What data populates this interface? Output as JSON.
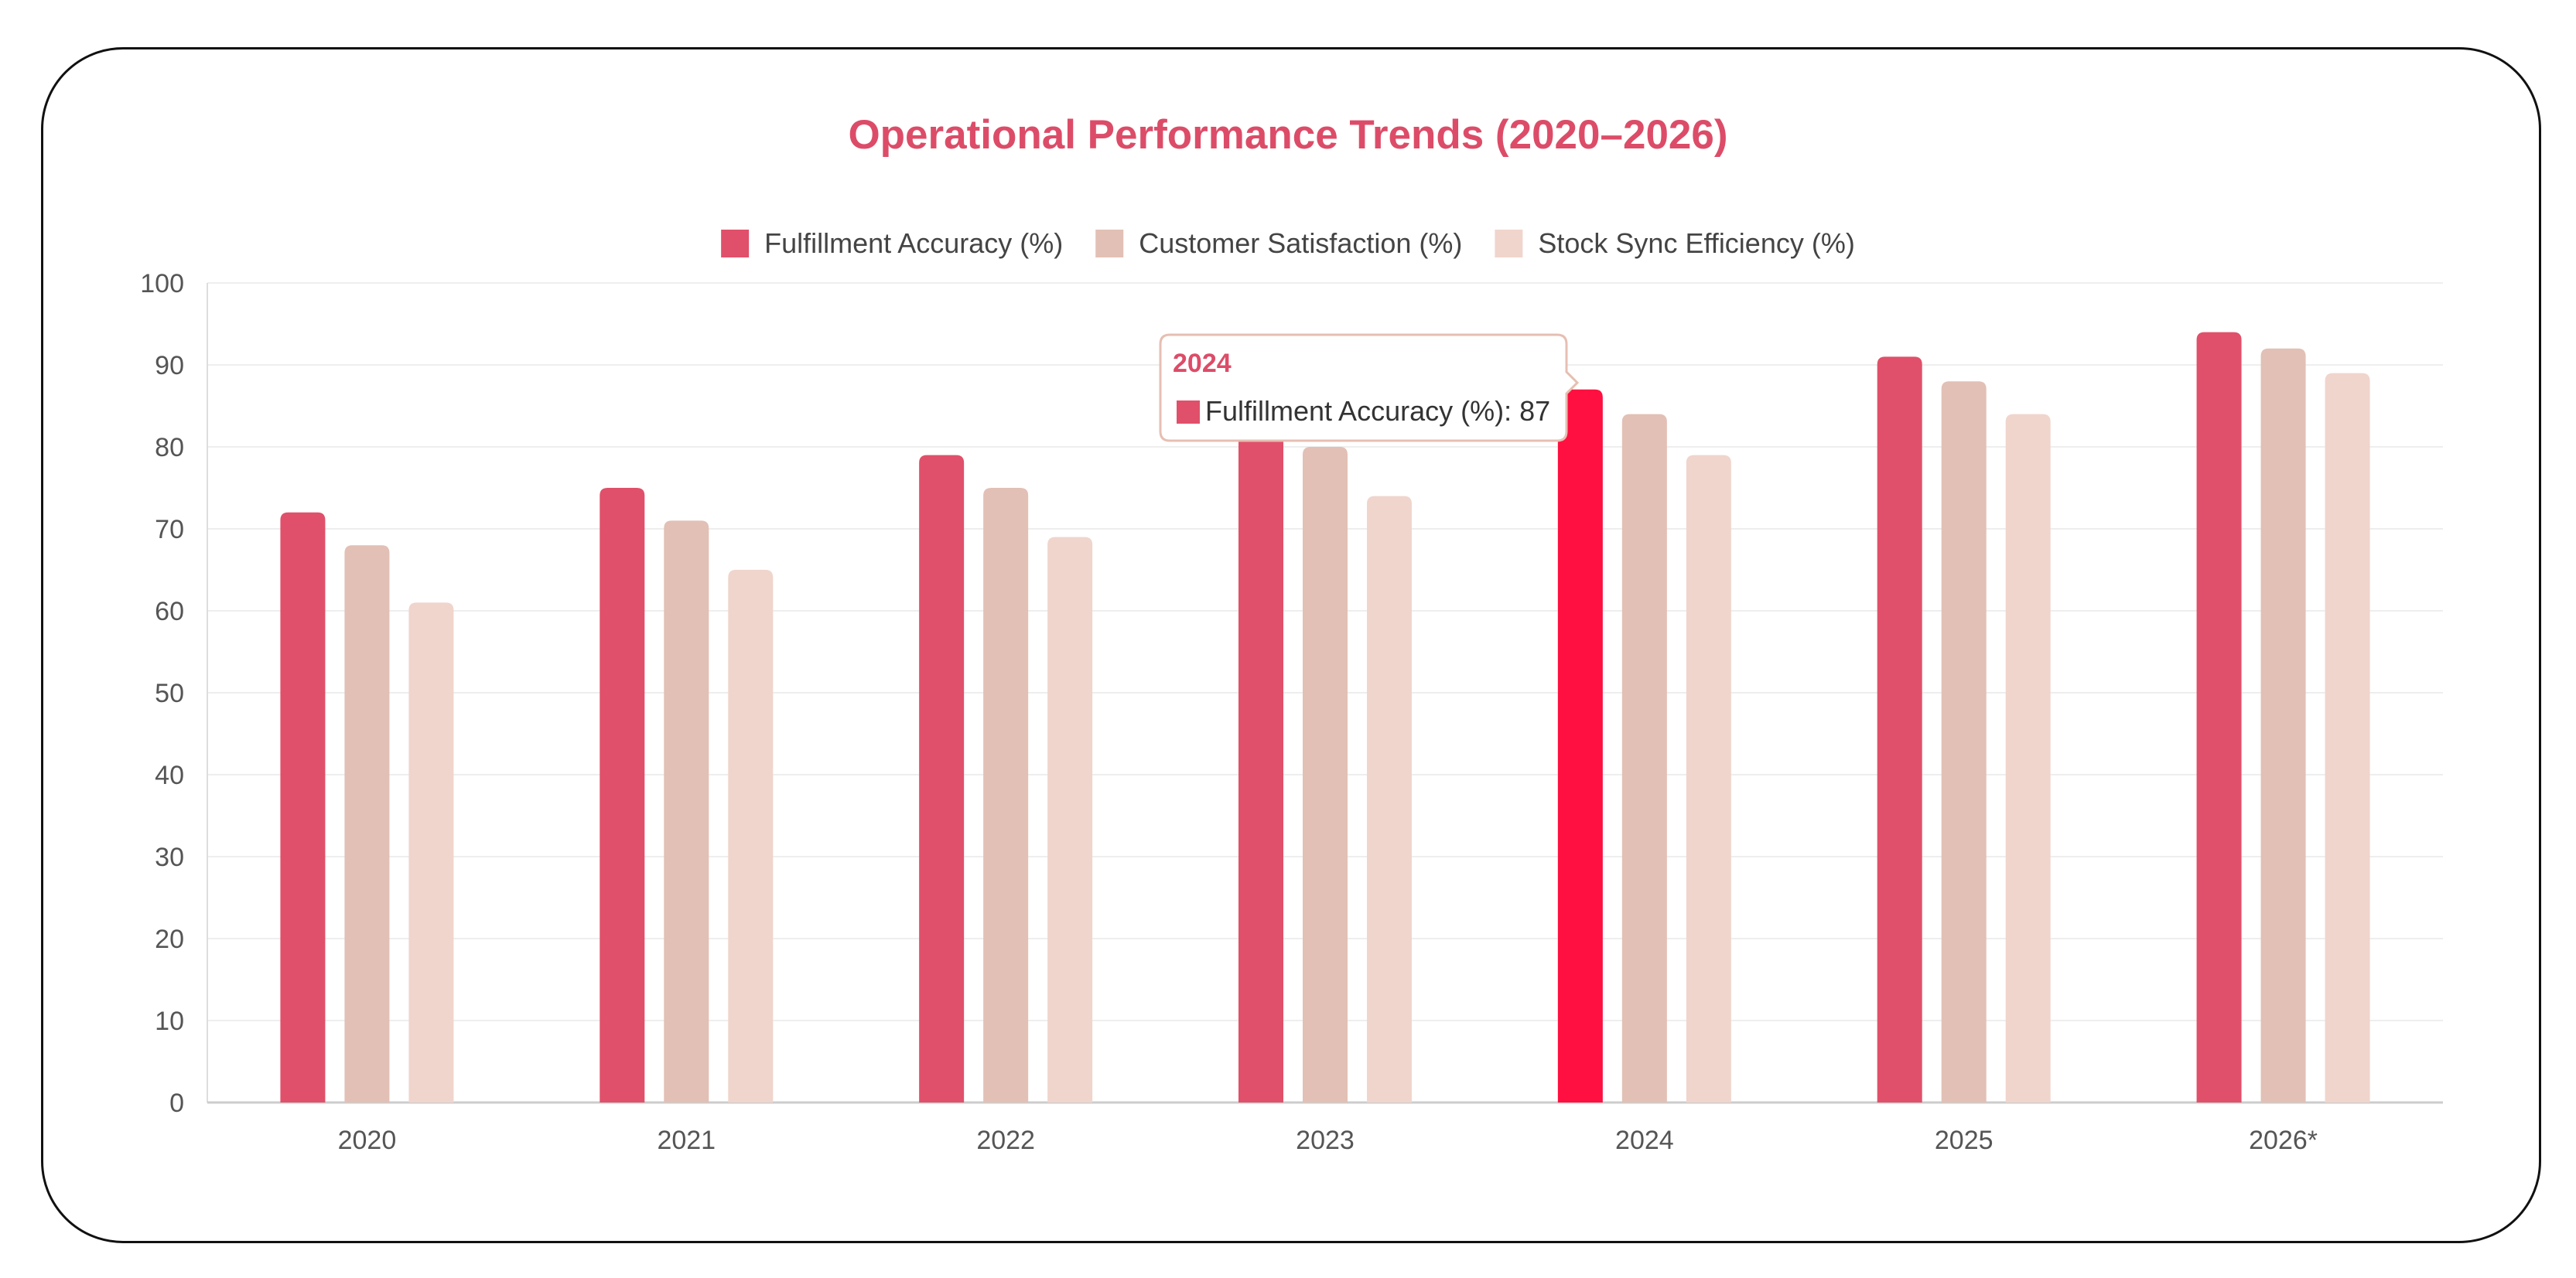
{
  "chart_data": {
    "type": "bar",
    "title": "Operational Performance Trends (2020–2026)",
    "categories": [
      "2020",
      "2021",
      "2022",
      "2023",
      "2024",
      "2025",
      "2026*"
    ],
    "series": [
      {
        "name": "Fulfillment Accuracy (%)",
        "values": [
          72,
          75,
          79,
          83,
          87,
          91,
          94
        ],
        "color": "#e0506a"
      },
      {
        "name": "Customer Satisfaction (%)",
        "values": [
          68,
          71,
          75,
          80,
          84,
          88,
          92
        ],
        "color": "#e2c0b5"
      },
      {
        "name": "Stock Sync Efficiency (%)",
        "values": [
          61,
          65,
          69,
          74,
          79,
          84,
          89
        ],
        "color": "#f0d5cd"
      }
    ],
    "ylim": [
      0,
      100
    ],
    "yticks": [
      0,
      10,
      20,
      30,
      40,
      50,
      60,
      70,
      80,
      90,
      100
    ],
    "grid": true,
    "legend_position": "top-center",
    "title_color": "#dc4c68",
    "highlight_color": "#ff1040",
    "tooltip": {
      "category_index": 4,
      "series_index": 0,
      "title": "2024",
      "label": "Fulfillment Accuracy (%): 87"
    }
  }
}
